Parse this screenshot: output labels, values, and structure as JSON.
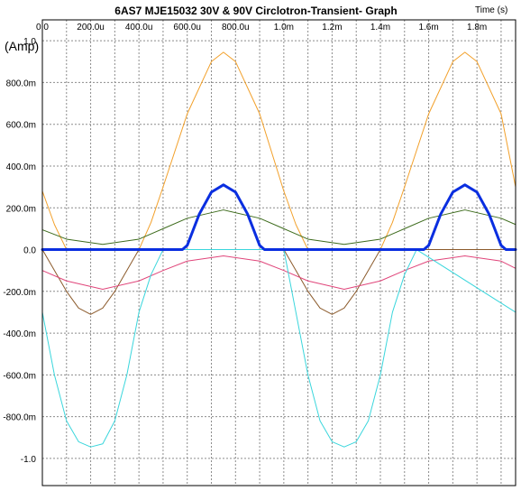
{
  "chart_data": {
    "type": "line",
    "title": "6AS7  MJE15032 30V & 90V Circlotron-Transient- Graph",
    "xlabel": "Time  (s)",
    "ylabel": "(Amp)",
    "xlim": [
      0,
      0.00196
    ],
    "ylim": [
      -1.13,
      1.1
    ],
    "x_ticks": [
      {
        "value": 0,
        "label": "0.0"
      },
      {
        "value": 0.0002,
        "label": "200.0u"
      },
      {
        "value": 0.0004,
        "label": "400.0u"
      },
      {
        "value": 0.0006,
        "label": "600.0u"
      },
      {
        "value": 0.0008,
        "label": "800.0u"
      },
      {
        "value": 0.001,
        "label": "1.0m"
      },
      {
        "value": 0.0012,
        "label": "1.2m"
      },
      {
        "value": 0.0014,
        "label": "1.4m"
      },
      {
        "value": 0.0016,
        "label": "1.6m"
      },
      {
        "value": 0.0018,
        "label": "1.8m"
      }
    ],
    "y_ticks": [
      {
        "value": 1.0,
        "label": "1.0"
      },
      {
        "value": 0.8,
        "label": "800.0m"
      },
      {
        "value": 0.6,
        "label": "600.0m"
      },
      {
        "value": 0.4,
        "label": "400.0m"
      },
      {
        "value": 0.2,
        "label": "200.0m"
      },
      {
        "value": 0.0,
        "label": "0.0"
      },
      {
        "value": -0.2,
        "label": "-200.0m"
      },
      {
        "value": -0.4,
        "label": "-400.0m"
      },
      {
        "value": -0.6,
        "label": "-600.0m"
      },
      {
        "value": -0.8,
        "label": "-800.0m"
      },
      {
        "value": -1.0,
        "label": "-1.0"
      }
    ],
    "grid": true,
    "x_minor_divisions": 2,
    "period_s": 0.001,
    "series": [
      {
        "id": "orange",
        "color": "#f2a02a",
        "width": 1,
        "points": [
          [
            0,
            0.28
          ],
          [
            5e-05,
            0.12
          ],
          [
            0.0001,
            0.0
          ],
          [
            0.0004,
            0.0
          ],
          [
            0.00045,
            0.13
          ],
          [
            0.0005,
            0.3
          ],
          [
            0.0006,
            0.65
          ],
          [
            0.0007,
            0.9
          ],
          [
            0.00075,
            0.945
          ],
          [
            0.0008,
            0.9
          ],
          [
            0.0009,
            0.65
          ],
          [
            0.001,
            0.28
          ],
          [
            0.00105,
            0.12
          ],
          [
            0.0011,
            0.0
          ],
          [
            0.0014,
            0.0
          ],
          [
            0.00145,
            0.13
          ],
          [
            0.0015,
            0.3
          ],
          [
            0.0016,
            0.65
          ],
          [
            0.0017,
            0.9
          ],
          [
            0.00175,
            0.945
          ],
          [
            0.0018,
            0.9
          ],
          [
            0.0019,
            0.65
          ],
          [
            0.00196,
            0.3
          ]
        ]
      },
      {
        "id": "brown",
        "color": "#8b5a2b",
        "width": 1,
        "points": [
          [
            0,
            0.0
          ],
          [
            5e-05,
            -0.1
          ],
          [
            0.0001,
            -0.2
          ],
          [
            0.00015,
            -0.28
          ],
          [
            0.0002,
            -0.31
          ],
          [
            0.00025,
            -0.28
          ],
          [
            0.0003,
            -0.2
          ],
          [
            0.00035,
            -0.1
          ],
          [
            0.0004,
            0.0
          ],
          [
            0.001,
            0.0
          ],
          [
            0.00105,
            -0.1
          ],
          [
            0.0011,
            -0.2
          ],
          [
            0.00115,
            -0.28
          ],
          [
            0.0012,
            -0.31
          ],
          [
            0.00125,
            -0.28
          ],
          [
            0.0013,
            -0.2
          ],
          [
            0.00135,
            -0.1
          ],
          [
            0.0014,
            0.0
          ],
          [
            0.00196,
            0.0
          ]
        ]
      },
      {
        "id": "green",
        "color": "#3d6b1c",
        "width": 1,
        "points": [
          [
            0,
            0.095
          ],
          [
            0.0001,
            0.05
          ],
          [
            0.00025,
            0.025
          ],
          [
            0.0004,
            0.05
          ],
          [
            0.0005,
            0.1
          ],
          [
            0.0006,
            0.15
          ],
          [
            0.00075,
            0.19
          ],
          [
            0.0009,
            0.15
          ],
          [
            0.001,
            0.1
          ],
          [
            0.0011,
            0.05
          ],
          [
            0.00125,
            0.025
          ],
          [
            0.0014,
            0.05
          ],
          [
            0.0015,
            0.1
          ],
          [
            0.0016,
            0.15
          ],
          [
            0.00175,
            0.19
          ],
          [
            0.0019,
            0.15
          ],
          [
            0.00196,
            0.12
          ]
        ]
      },
      {
        "id": "magenta",
        "color": "#e0457a",
        "width": 1,
        "points": [
          [
            0,
            -0.1
          ],
          [
            0.0001,
            -0.15
          ],
          [
            0.00025,
            -0.19
          ],
          [
            0.0004,
            -0.15
          ],
          [
            0.0005,
            -0.1
          ],
          [
            0.0006,
            -0.055
          ],
          [
            0.00075,
            -0.03
          ],
          [
            0.0009,
            -0.055
          ],
          [
            0.001,
            -0.1
          ],
          [
            0.0011,
            -0.15
          ],
          [
            0.00125,
            -0.19
          ],
          [
            0.0014,
            -0.15
          ],
          [
            0.0015,
            -0.1
          ],
          [
            0.0016,
            -0.055
          ],
          [
            0.00175,
            -0.03
          ],
          [
            0.0019,
            -0.055
          ],
          [
            0.00196,
            -0.09
          ]
        ]
      },
      {
        "id": "cyan",
        "color": "#3ad6dc",
        "width": 1,
        "points": [
          [
            0,
            -0.3
          ],
          [
            5e-05,
            -0.6
          ],
          [
            0.0001,
            -0.82
          ],
          [
            0.00015,
            -0.92
          ],
          [
            0.0002,
            -0.945
          ],
          [
            0.00025,
            -0.93
          ],
          [
            0.0003,
            -0.82
          ],
          [
            0.00035,
            -0.6
          ],
          [
            0.0004,
            -0.3
          ],
          [
            0.00045,
            -0.12
          ],
          [
            0.0005,
            0.0
          ],
          [
            0.001,
            0.0
          ],
          [
            0.00105,
            -0.3
          ],
          [
            0.0011,
            -0.6
          ],
          [
            0.00115,
            -0.82
          ],
          [
            0.0012,
            -0.92
          ],
          [
            0.00125,
            -0.945
          ],
          [
            0.0013,
            -0.92
          ],
          [
            0.00135,
            -0.82
          ],
          [
            0.0014,
            -0.6
          ],
          [
            0.00145,
            -0.3
          ],
          [
            0.0015,
            -0.12
          ],
          [
            0.00155,
            0.0
          ],
          [
            0.00196,
            -0.3
          ]
        ]
      },
      {
        "id": "blue",
        "color": "#0a2ee0",
        "width": 3,
        "points": [
          [
            0,
            0.0
          ],
          [
            0.00058,
            0.0
          ],
          [
            0.0006,
            0.02
          ],
          [
            0.00065,
            0.17
          ],
          [
            0.0007,
            0.275
          ],
          [
            0.00075,
            0.31
          ],
          [
            0.0008,
            0.275
          ],
          [
            0.00085,
            0.17
          ],
          [
            0.0009,
            0.02
          ],
          [
            0.00092,
            0.0
          ],
          [
            0.00158,
            0.0
          ],
          [
            0.0016,
            0.02
          ],
          [
            0.00165,
            0.17
          ],
          [
            0.0017,
            0.275
          ],
          [
            0.00175,
            0.31
          ],
          [
            0.0018,
            0.275
          ],
          [
            0.00185,
            0.17
          ],
          [
            0.0019,
            0.02
          ],
          [
            0.00192,
            0.0
          ],
          [
            0.00196,
            0.0
          ]
        ]
      }
    ]
  }
}
